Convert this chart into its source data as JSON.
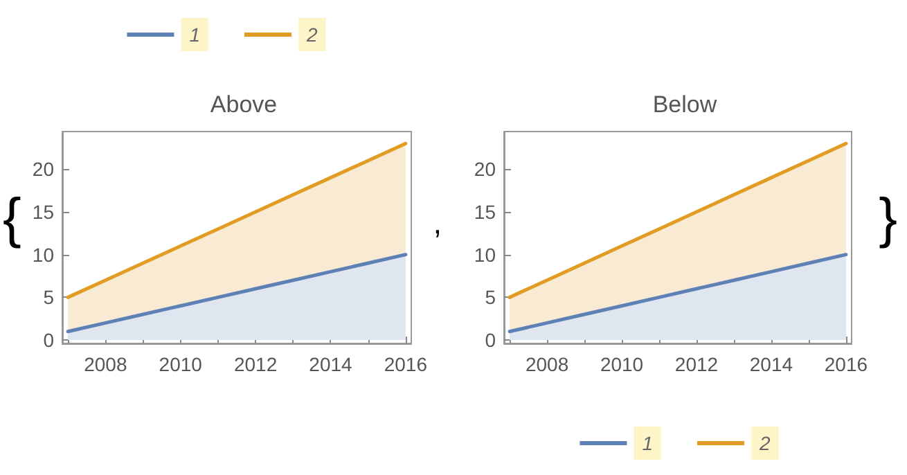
{
  "chart_data": [
    {
      "type": "area",
      "title": "Above",
      "x": [
        2007,
        2008,
        2009,
        2010,
        2011,
        2012,
        2013,
        2014,
        2015,
        2016
      ],
      "series": [
        {
          "name": "1",
          "color": "#5e81b5",
          "values": [
            1,
            2,
            3,
            4,
            5,
            6,
            7,
            8,
            9,
            10
          ]
        },
        {
          "name": "2",
          "color": "#e19c24",
          "values": [
            5,
            7,
            9,
            11,
            13,
            15,
            17,
            19,
            21,
            23
          ]
        }
      ],
      "xlim": [
        2006.85,
        2016.15
      ],
      "xticks": [
        {
          "value": 2007,
          "label": null
        },
        2008,
        {
          "value": 2009,
          "label": null
        },
        2010,
        {
          "value": 2011,
          "label": null
        },
        2012,
        {
          "value": 2013,
          "label": null
        },
        2014,
        {
          "value": 2015,
          "label": null
        },
        2016
      ],
      "ylim": [
        -0.4,
        24.4
      ],
      "yticks": [
        0,
        5,
        10,
        15,
        20
      ],
      "legend": "top",
      "grid": false,
      "annotations": [
        "{",
        ","
      ]
    },
    {
      "type": "area",
      "title": "Below",
      "x": [
        2007,
        2008,
        2009,
        2010,
        2011,
        2012,
        2013,
        2014,
        2015,
        2016
      ],
      "series": [
        {
          "name": "1",
          "color": "#5e81b5",
          "values": [
            1,
            2,
            3,
            4,
            5,
            6,
            7,
            8,
            9,
            10
          ]
        },
        {
          "name": "2",
          "color": "#e19c24",
          "values": [
            5,
            7,
            9,
            11,
            13,
            15,
            17,
            19,
            21,
            23
          ]
        }
      ],
      "xlim": [
        2006.85,
        2016.15
      ],
      "xticks": [
        {
          "value": 2007,
          "label": null
        },
        2008,
        {
          "value": 2009,
          "label": null
        },
        2010,
        {
          "value": 2011,
          "label": null
        },
        2012,
        {
          "value": 2013,
          "label": null
        },
        2014,
        {
          "value": 2015,
          "label": null
        },
        2016
      ],
      "ylim": [
        -0.4,
        24.4
      ],
      "yticks": [
        0,
        5,
        10,
        15,
        20
      ],
      "legend": "bottom",
      "grid": false,
      "annotations": [
        "}"
      ]
    }
  ]
}
